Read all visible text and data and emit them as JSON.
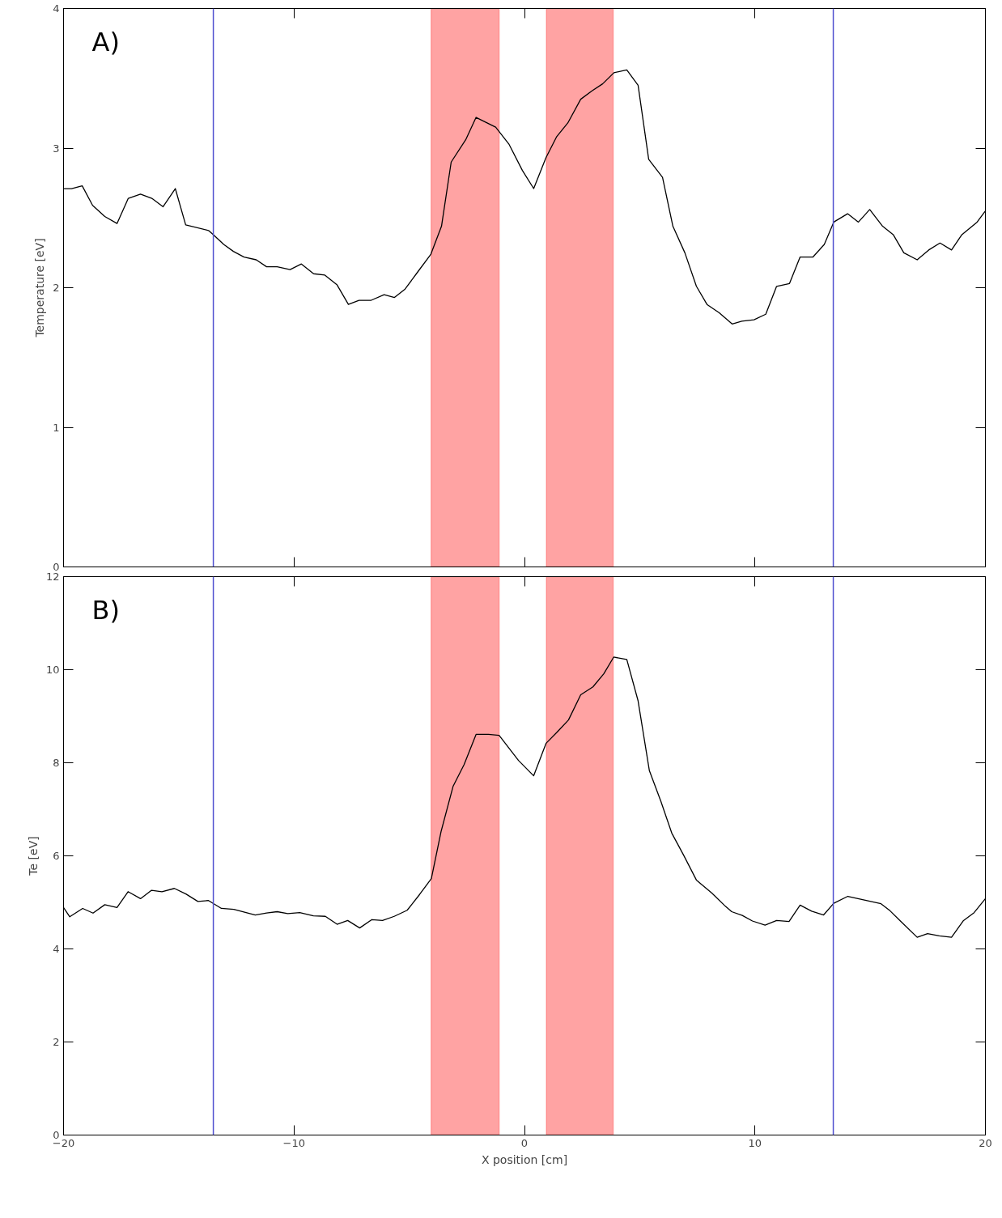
{
  "chart_data": [
    {
      "type": "line",
      "annotations": [
        "A)"
      ],
      "ylabel": "Temperature [eV]",
      "tick_labels": "y",
      "xlim": [
        -20,
        20
      ],
      "ylim": [
        0,
        4
      ],
      "xticks": [
        -20,
        -10,
        0,
        10,
        20
      ],
      "yticks": [
        0,
        1,
        2,
        3,
        4
      ],
      "grid": false,
      "x": [
        -20,
        -19.65,
        -19.19,
        -18.74,
        -18.21,
        -17.68,
        -17.19,
        -16.66,
        -16.17,
        -15.68,
        -15.15,
        -14.7,
        -13.71,
        -13.5,
        -13.05,
        -12.63,
        -12.17,
        -11.64,
        -11.19,
        -10.73,
        -10.17,
        -9.68,
        -9.15,
        -8.66,
        -8.13,
        -7.64,
        -7.18,
        -6.65,
        -6.09,
        -5.64,
        -5.18,
        -4.69,
        -4.06,
        -3.6,
        -3.18,
        -2.55,
        -2.1,
        -1.25,
        -0.68,
        -0.09,
        0.4,
        0.93,
        1.39,
        1.88,
        2.44,
        2.93,
        3.39,
        3.88,
        4.44,
        4.93,
        5.39,
        5.99,
        6.44,
        6.96,
        7.46,
        7.92,
        8.45,
        9.01,
        9.43,
        9.96,
        10.47,
        10.94,
        11.5,
        11.96,
        12.52,
        13.01,
        13.42,
        14.02,
        14.49,
        14.98,
        15.54,
        16.0,
        16.46,
        17.04,
        17.54,
        18.03,
        18.53,
        18.98,
        19.64,
        20
      ],
      "series": [
        {
          "color": "#000000",
          "values": [
            2.71,
            2.71,
            2.73,
            2.59,
            2.51,
            2.46,
            2.64,
            2.67,
            2.64,
            2.58,
            2.71,
            2.45,
            2.41,
            2.38,
            2.31,
            2.26,
            2.22,
            2.2,
            2.15,
            2.15,
            2.13,
            2.17,
            2.1,
            2.09,
            2.02,
            1.88,
            1.91,
            1.91,
            1.95,
            1.93,
            1.99,
            2.1,
            2.24,
            2.44,
            2.9,
            3.06,
            3.22,
            3.15,
            3.03,
            2.84,
            2.71,
            2.93,
            3.08,
            3.18,
            3.35,
            3.41,
            3.46,
            3.54,
            3.56,
            3.45,
            2.92,
            2.79,
            2.44,
            2.25,
            2.01,
            1.88,
            1.82,
            1.74,
            1.76,
            1.77,
            1.81,
            2.01,
            2.03,
            2.22,
            2.22,
            2.31,
            2.47,
            2.53,
            2.47,
            2.56,
            2.44,
            2.38,
            2.25,
            2.2,
            2.27,
            2.32,
            2.27,
            2.38,
            2.47,
            2.55
          ]
        }
      ],
      "ref_lines": [
        {
          "axis": "x",
          "value": -13.5,
          "color": "#5050d0"
        },
        {
          "axis": "x",
          "value": 13.4,
          "color": "#5050d0"
        }
      ],
      "bands": [
        {
          "axis": "x",
          "from": -4.05,
          "to": -1.1,
          "color": "#ffa3a3"
        },
        {
          "axis": "x",
          "from": 0.95,
          "to": 3.85,
          "color": "#ffa3a3"
        }
      ]
    },
    {
      "type": "line",
      "annotations": [
        "B)"
      ],
      "xlabel": "X position [cm]",
      "ylabel": "Te [eV]",
      "xlim": [
        -20,
        20
      ],
      "ylim": [
        0,
        12
      ],
      "xticks": [
        -20,
        -10,
        0,
        10,
        20
      ],
      "yticks": [
        0,
        2,
        4,
        6,
        8,
        10,
        12
      ],
      "grid": false,
      "x": [
        -20,
        -19.73,
        -19.17,
        -18.72,
        -18.21,
        -17.68,
        -17.2,
        -16.66,
        -16.18,
        -15.73,
        -15.19,
        -14.69,
        -14.17,
        -13.71,
        -13.15,
        -12.61,
        -11.68,
        -11.19,
        -10.73,
        -10.27,
        -9.75,
        -9.16,
        -8.64,
        -8.13,
        -7.67,
        -7.15,
        -6.62,
        -6.16,
        -5.65,
        -5.09,
        -4.55,
        -4.04,
        -3.62,
        -3.1,
        -2.62,
        -2.1,
        -1.56,
        -1.1,
        -0.26,
        0.4,
        0.94,
        1.42,
        1.91,
        2.44,
        2.97,
        3.44,
        3.87,
        4.44,
        4.93,
        5.42,
        5.92,
        6.39,
        6.9,
        7.46,
        8.13,
        8.71,
        8.99,
        9.45,
        9.89,
        10.44,
        10.94,
        11.48,
        11.96,
        12.46,
        12.98,
        13.42,
        14.03,
        15.47,
        15.86,
        16.31,
        17.04,
        17.49,
        18.0,
        18.53,
        19.05,
        19.51,
        20
      ],
      "series": [
        {
          "color": "#000000",
          "values": [
            4.89,
            4.69,
            4.87,
            4.77,
            4.95,
            4.89,
            5.23,
            5.08,
            5.26,
            5.23,
            5.3,
            5.18,
            5.02,
            5.04,
            4.87,
            4.85,
            4.73,
            4.77,
            4.8,
            4.76,
            4.78,
            4.71,
            4.7,
            4.53,
            4.61,
            4.45,
            4.63,
            4.61,
            4.7,
            4.83,
            5.17,
            5.51,
            6.52,
            7.49,
            7.96,
            8.61,
            8.61,
            8.59,
            8.05,
            7.72,
            8.42,
            8.66,
            8.92,
            9.46,
            9.63,
            9.91,
            10.27,
            10.22,
            9.33,
            7.83,
            7.17,
            6.49,
            6.02,
            5.48,
            5.2,
            4.92,
            4.8,
            4.72,
            4.6,
            4.51,
            4.61,
            4.59,
            4.94,
            4.81,
            4.73,
            4.98,
            5.13,
            4.97,
            4.82,
            4.6,
            4.25,
            4.33,
            4.28,
            4.25,
            4.61,
            4.78,
            5.08
          ]
        }
      ],
      "ref_lines": [
        {
          "axis": "x",
          "value": -13.5,
          "color": "#5050d0"
        },
        {
          "axis": "x",
          "value": 13.4,
          "color": "#5050d0"
        }
      ],
      "bands": [
        {
          "axis": "x",
          "from": -4.05,
          "to": -1.1,
          "color": "#ffa3a3"
        },
        {
          "axis": "x",
          "from": 0.95,
          "to": 3.85,
          "color": "#ffa3a3"
        }
      ]
    }
  ]
}
